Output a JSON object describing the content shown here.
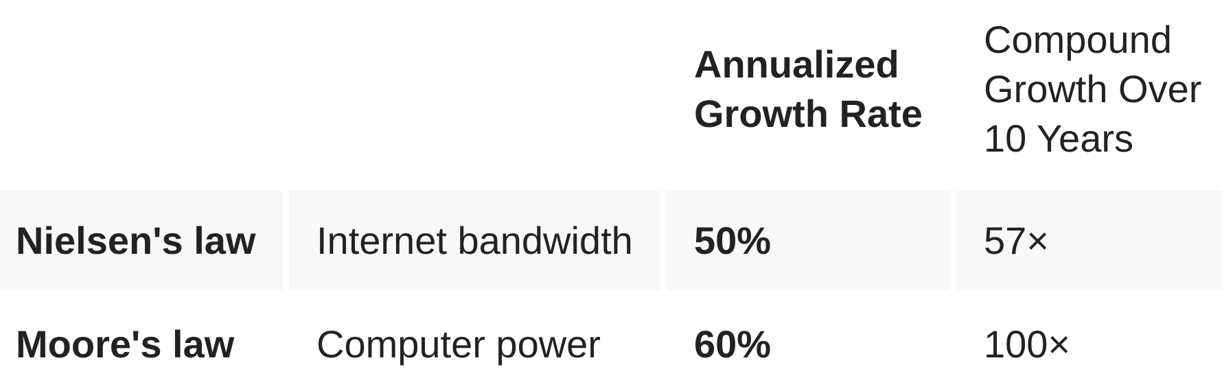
{
  "table": {
    "headers": {
      "col1": "",
      "col2": "",
      "col3": "Annualized Growth Rate",
      "col4": "Compound Growth Over 10 Years"
    },
    "rows": [
      {
        "law": "Nielsen's law",
        "measure": "Internet bandwidth",
        "rate": "50%",
        "growth": "57×"
      },
      {
        "law": "Moore's law",
        "measure": "Computer power",
        "rate": "60%",
        "growth": "100×"
      }
    ]
  }
}
